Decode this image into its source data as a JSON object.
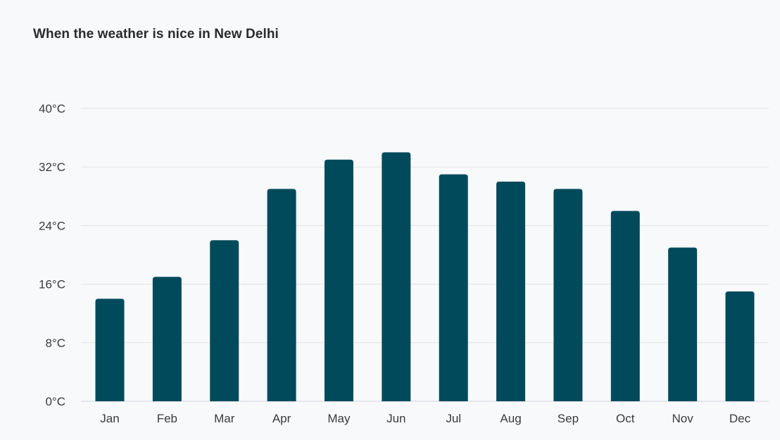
{
  "chart_data": {
    "type": "bar",
    "title": "When the weather is nice in New Delhi",
    "categories": [
      "Jan",
      "Feb",
      "Mar",
      "Apr",
      "May",
      "Jun",
      "Jul",
      "Aug",
      "Sep",
      "Oct",
      "Nov",
      "Dec"
    ],
    "values": [
      14,
      17,
      22,
      29,
      33,
      34,
      31,
      30,
      29,
      26,
      21,
      15
    ],
    "ylim": [
      0,
      40
    ],
    "yticks": [
      0,
      8,
      16,
      24,
      32,
      40
    ],
    "ytick_labels": [
      "0°C",
      "8°C",
      "16°C",
      "24°C",
      "32°C",
      "40°C"
    ],
    "xlabel": "",
    "ylabel": "",
    "grid": true,
    "legend": "none",
    "bar_color": "#004a5c"
  }
}
